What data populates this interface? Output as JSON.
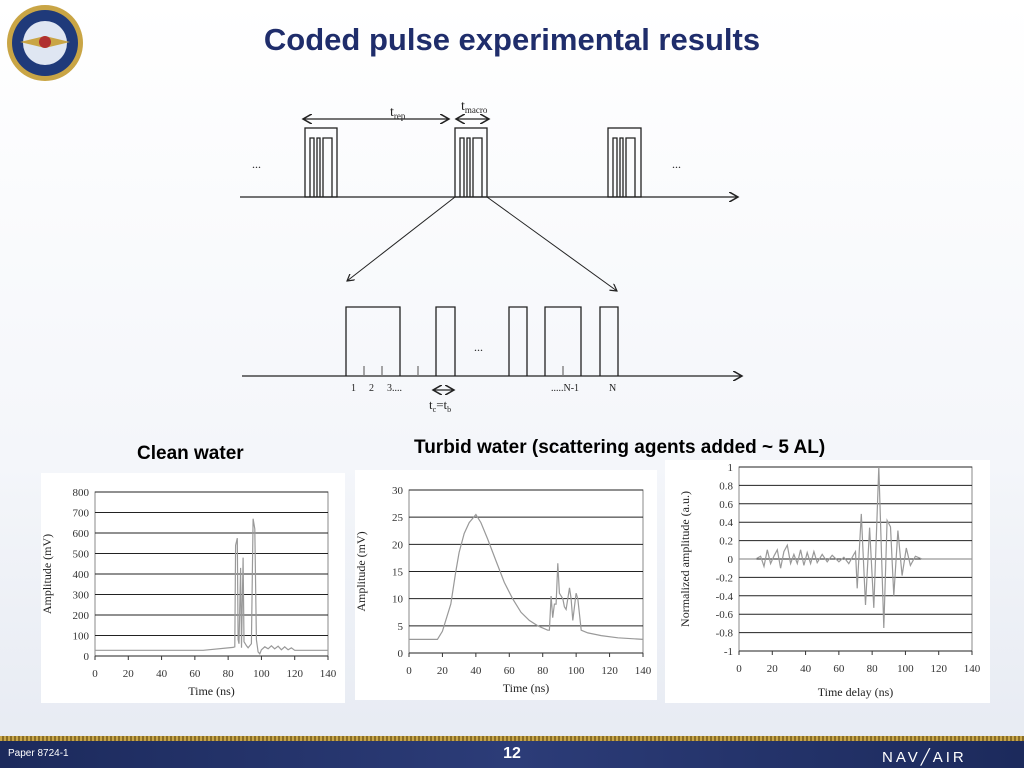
{
  "slide": {
    "title": "Coded pulse experimental results",
    "caption_clean": "Clean water",
    "caption_turbid": "Turbid water (scattering agents added ~ 5 AL)",
    "logo_text": "NAVAL AIR SYSTEMS COMMAND",
    "footer": {
      "paper": "Paper 8724-1",
      "page": "12",
      "brand": "NAV╱AIR"
    },
    "colors": {
      "title": "#1f2d6b",
      "footer": "#1c2a5c",
      "stripe": "#c7a64a",
      "trace": "#999999"
    }
  },
  "diagram": {
    "t_rep": "t",
    "t_rep_sub": "rep",
    "t_macro": "t",
    "t_macro_sub": "macro",
    "ellipsis": "...",
    "chip_labels": [
      "1",
      "2",
      "3....",
      ".....N-1",
      "N"
    ],
    "tc": "t",
    "tc_sub": "c",
    "eq": "=t",
    "tb_sub": "b"
  },
  "chart_data": [
    {
      "type": "line",
      "xlabel": "Time (ns)",
      "ylabel": "Amplitude (mV)",
      "xlim": [
        0,
        140
      ],
      "ylim": [
        0,
        800
      ],
      "xticks": [
        0,
        20,
        40,
        60,
        80,
        100,
        120,
        140
      ],
      "yticks": [
        0,
        100,
        200,
        300,
        400,
        500,
        600,
        700,
        800
      ],
      "grid": "horizontal",
      "points": [
        [
          0,
          28
        ],
        [
          65,
          28
        ],
        [
          83,
          42
        ],
        [
          84,
          45
        ],
        [
          84.5,
          540
        ],
        [
          85.5,
          575
        ],
        [
          86,
          80
        ],
        [
          86.5,
          60
        ],
        [
          87.5,
          430
        ],
        [
          88,
          40
        ],
        [
          89,
          480
        ],
        [
          89.5,
          70
        ],
        [
          91,
          50
        ],
        [
          92,
          40
        ],
        [
          94,
          60
        ],
        [
          95,
          670
        ],
        [
          96,
          620
        ],
        [
          97,
          80
        ],
        [
          98,
          20
        ],
        [
          99,
          10
        ],
        [
          100,
          30
        ],
        [
          102,
          45
        ],
        [
          104,
          35
        ],
        [
          106,
          50
        ],
        [
          108,
          35
        ],
        [
          110,
          48
        ],
        [
          112,
          30
        ],
        [
          114,
          45
        ],
        [
          116,
          30
        ],
        [
          118,
          40
        ],
        [
          120,
          28
        ],
        [
          124,
          28
        ],
        [
          140,
          28
        ]
      ]
    },
    {
      "type": "line",
      "xlabel": "Time (ns)",
      "ylabel": "Amplitude (mV)",
      "xlim": [
        0,
        140
      ],
      "ylim": [
        0,
        30
      ],
      "xticks": [
        0,
        20,
        40,
        60,
        80,
        100,
        120,
        140
      ],
      "yticks": [
        0,
        5,
        10,
        15,
        20,
        25,
        30
      ],
      "grid": "horizontal",
      "points": [
        [
          0,
          2.5
        ],
        [
          17,
          2.5
        ],
        [
          20,
          4
        ],
        [
          25,
          9
        ],
        [
          28,
          15
        ],
        [
          30,
          18.5
        ],
        [
          33,
          22
        ],
        [
          36,
          24
        ],
        [
          40,
          25.5
        ],
        [
          43,
          24
        ],
        [
          47,
          21
        ],
        [
          52,
          17
        ],
        [
          57,
          13
        ],
        [
          62,
          10
        ],
        [
          67,
          7.5
        ],
        [
          72,
          6
        ],
        [
          77,
          5
        ],
        [
          83,
          4.2
        ],
        [
          84,
          4.2
        ],
        [
          85,
          10.5
        ],
        [
          86,
          6.5
        ],
        [
          87,
          9
        ],
        [
          88,
          9
        ],
        [
          89,
          16.5
        ],
        [
          90,
          11
        ],
        [
          92,
          10
        ],
        [
          93,
          8.5
        ],
        [
          94,
          8
        ],
        [
          96,
          12
        ],
        [
          97,
          10
        ],
        [
          98,
          6
        ],
        [
          100,
          11
        ],
        [
          101,
          10
        ],
        [
          103,
          4.2
        ],
        [
          107,
          3.7
        ],
        [
          115,
          3.2
        ],
        [
          125,
          2.8
        ],
        [
          140,
          2.5
        ]
      ]
    },
    {
      "type": "line",
      "xlabel": "Time delay (ns)",
      "ylabel": "Normalized amplitude (a.u.)",
      "xlim": [
        0,
        140
      ],
      "ylim": [
        -1,
        1
      ],
      "xticks": [
        0,
        20,
        40,
        60,
        80,
        100,
        120,
        140
      ],
      "yticks": [
        -1,
        -0.8,
        -0.6,
        -0.4,
        -0.2,
        0,
        0.2,
        0.4,
        0.6,
        0.8,
        1
      ],
      "grid": "horizontal",
      "points": [
        [
          0,
          0
        ],
        [
          10,
          0
        ],
        [
          13,
          0.03
        ],
        [
          15,
          -0.08
        ],
        [
          17,
          0.1
        ],
        [
          19,
          -0.05
        ],
        [
          21,
          0.03
        ],
        [
          23,
          0.1
        ],
        [
          25,
          -0.1
        ],
        [
          27,
          0.08
        ],
        [
          29,
          0.15
        ],
        [
          31,
          -0.05
        ],
        [
          33,
          0.05
        ],
        [
          35,
          -0.05
        ],
        [
          37,
          0.1
        ],
        [
          39,
          -0.07
        ],
        [
          41,
          0.07
        ],
        [
          43,
          -0.05
        ],
        [
          45,
          0.08
        ],
        [
          47,
          -0.04
        ],
        [
          50,
          0.05
        ],
        [
          53,
          -0.03
        ],
        [
          56,
          0.04
        ],
        [
          60,
          -0.03
        ],
        [
          63,
          0.02
        ],
        [
          66,
          -0.05
        ],
        [
          69,
          0.05
        ],
        [
          70,
          0.08
        ],
        [
          71,
          -0.32
        ],
        [
          73.5,
          0.49
        ],
        [
          76,
          -0.5
        ],
        [
          78.5,
          0.34
        ],
        [
          81,
          -0.53
        ],
        [
          84,
          1.0
        ],
        [
          87,
          -0.75
        ],
        [
          89,
          0.42
        ],
        [
          91,
          0.35
        ],
        [
          93,
          -0.4
        ],
        [
          95.5,
          0.31
        ],
        [
          98,
          -0.18
        ],
        [
          100.5,
          0.12
        ],
        [
          103,
          -0.07
        ],
        [
          106,
          0.03
        ],
        [
          110,
          0
        ],
        [
          140,
          0
        ]
      ]
    }
  ]
}
